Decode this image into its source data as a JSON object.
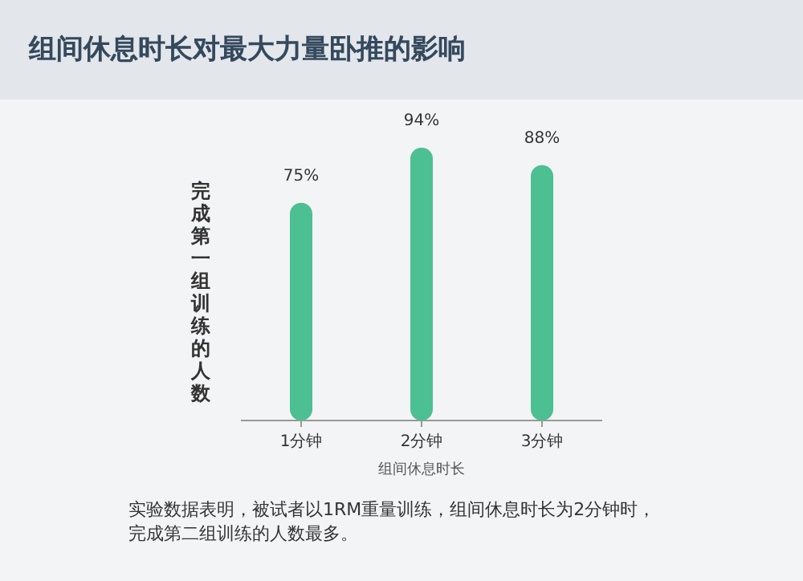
{
  "chart_data": {
    "type": "bar",
    "title": "组间休息时长对最大力量卧推的影响",
    "categories": [
      "1分钟",
      "2分钟",
      "3分钟"
    ],
    "values": [
      75,
      94,
      88
    ],
    "value_labels": [
      "75%",
      "94%",
      "88%"
    ],
    "color": "#4cbf93",
    "xlabel": "组间休息时长",
    "ylabel": "完成第一组训练的人数",
    "annotations": [
      "实验数据表明，被试者以1RM重量训练，组间休息时长为2分钟时，完成第二组训练的人数最多。"
    ]
  }
}
